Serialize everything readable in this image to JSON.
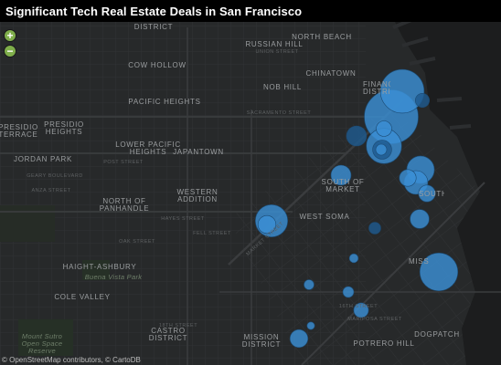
{
  "title": "Significant Tech Real Estate Deals in San Francisco",
  "zoom_in": "+",
  "zoom_out": "−",
  "attribution": "© OpenStreetMap contributors, © CartoDB",
  "colors": {
    "bubble": "#3a8fd4",
    "bubble_dark": "#1f5a8f",
    "zoom": "#7fae4b"
  },
  "neighborhoods": [
    "DISTRICT",
    "RUSSIAN HILL",
    "NORTH BEACH",
    "COW HOLLOW",
    "CHINATOWN",
    "NOB HILL",
    "PACIFIC HEIGHTS",
    "FINANCIAL DISTRICT",
    "PRESIDIO TERRACE",
    "PRESIDIO HEIGHTS",
    "LOWER PACIFIC HEIGHTS",
    "JAPANTOWN",
    "JORDAN PARK",
    "SOUTH OF MARKET",
    "SOUTH BEACH",
    "NORTH OF PANHANDLE",
    "WESTERN ADDITION",
    "WEST SOMA",
    "HAIGHT-ASHBURY",
    "MISSION BAY",
    "COLE VALLEY",
    "CASTRO DISTRICT",
    "MISSION DISTRICT",
    "DOGPATCH",
    "POTRERO HILL"
  ],
  "parks": [
    "Buena Vista Park",
    "Mount Sutro Open Space Reserve"
  ],
  "streets": [
    "UNION STREET",
    "SACRAMENTO STREET",
    "POST STREET",
    "ANZA STREET",
    "FELL STREET",
    "OAK STREET",
    "HAYES STREET",
    "16TH STREET",
    "18TH STREET",
    "MARIPOSA STREET",
    "GEARY BOULEVARD",
    "MARKET STREET"
  ],
  "deals": [
    {
      "id": 1,
      "value": 145
    },
    {
      "id": 2,
      "value": 12
    },
    {
      "id": 3,
      "value": 95
    },
    {
      "id": 4,
      "value": 10
    },
    {
      "id": 5,
      "value": 62
    },
    {
      "id": 6,
      "value": 18
    },
    {
      "id": 7,
      "value": 6
    },
    {
      "id": 8,
      "value": 20
    },
    {
      "id": 9,
      "value": 38
    },
    {
      "id": 10,
      "value": 28
    },
    {
      "id": 11,
      "value": 14
    },
    {
      "id": 12,
      "value": 52
    },
    {
      "id": 13,
      "value": 16
    },
    {
      "id": 14,
      "value": 20
    },
    {
      "id": 15,
      "value": 18
    },
    {
      "id": 16,
      "value": 72
    },
    {
      "id": 17,
      "value": 7
    },
    {
      "id": 18,
      "value": 4
    },
    {
      "id": 19,
      "value": 6
    },
    {
      "id": 20,
      "value": 11
    },
    {
      "id": 21,
      "value": 5
    },
    {
      "id": 22,
      "value": 3
    },
    {
      "id": 23,
      "value": 16
    },
    {
      "id": 24,
      "value": 14
    }
  ]
}
